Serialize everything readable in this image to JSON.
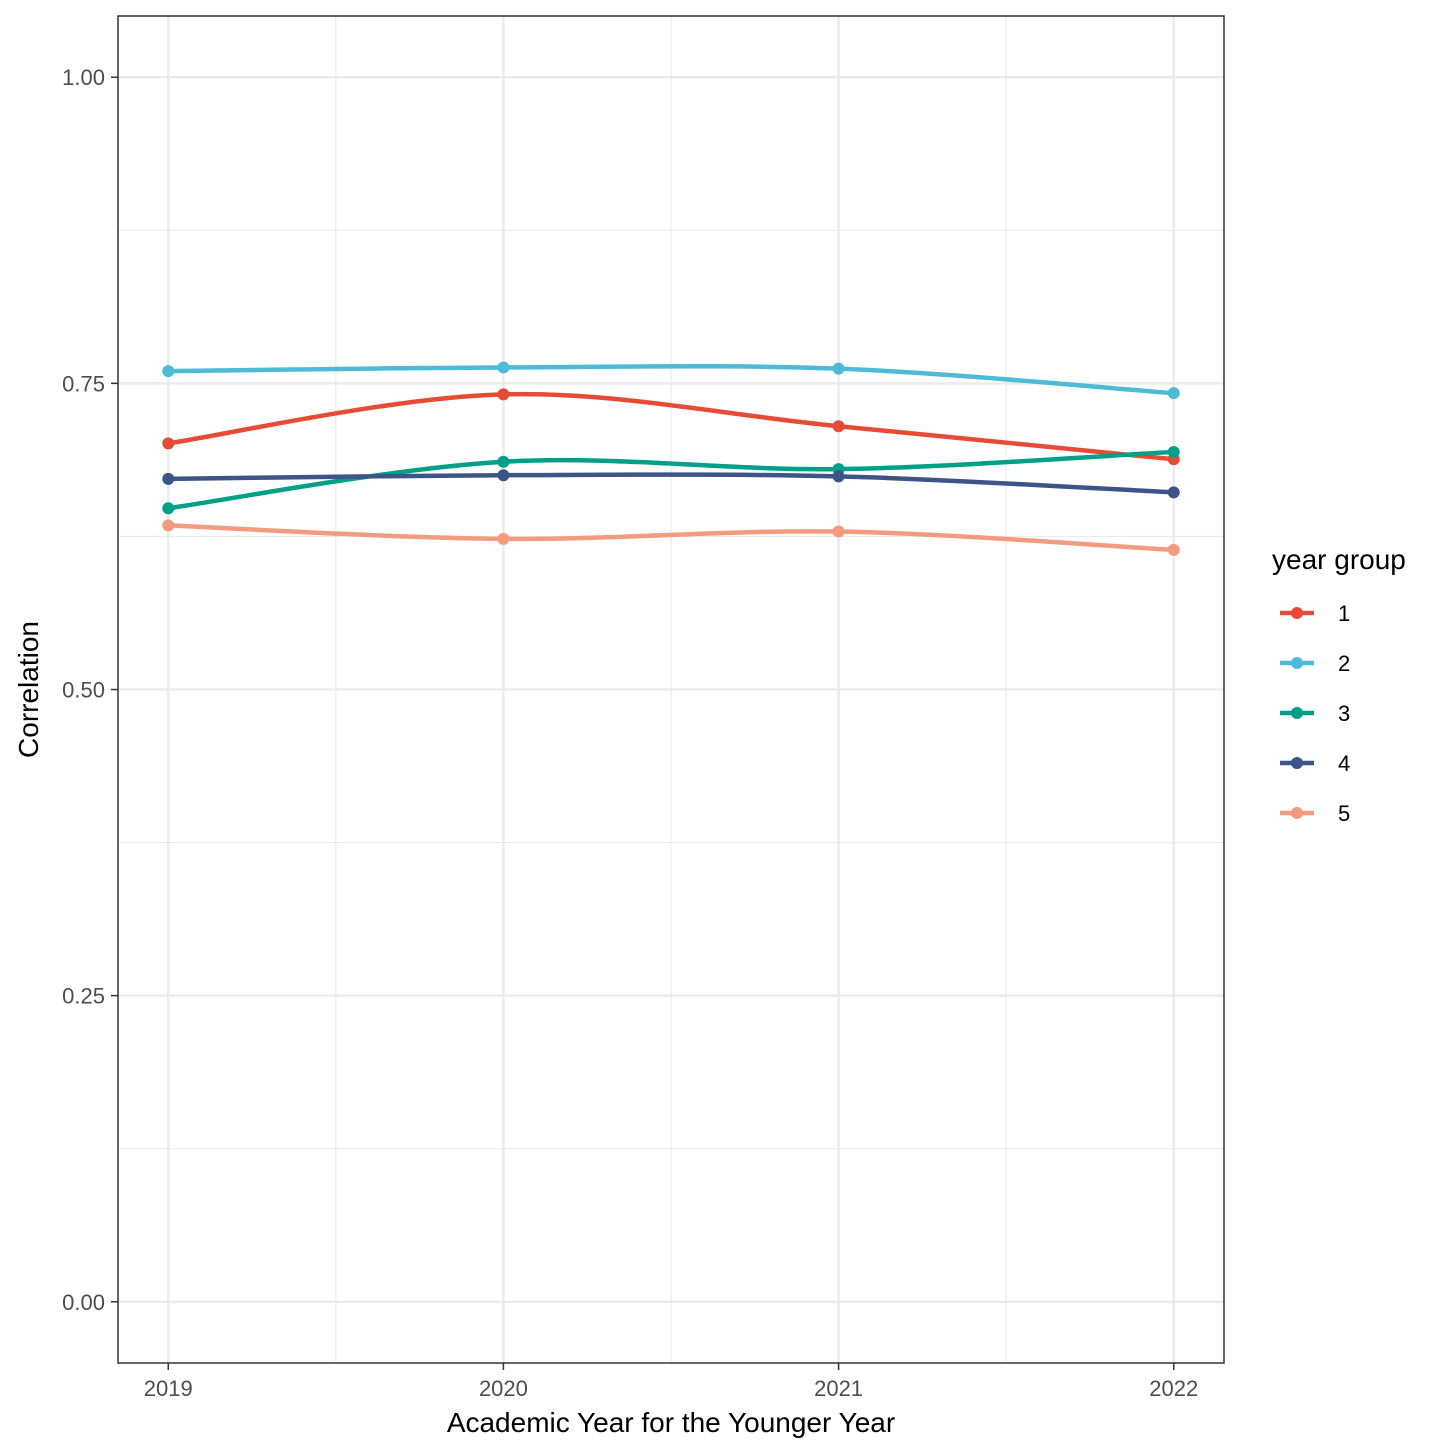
{
  "chart_data": {
    "type": "line",
    "title": "",
    "xlabel": "Academic Year for the Younger Year",
    "ylabel": "Correlation",
    "x": [
      2019,
      2020,
      2021,
      2022
    ],
    "x_tick_labels": [
      "2019",
      "2020",
      "2021",
      "2022"
    ],
    "ylim": [
      -0.05,
      1.05
    ],
    "xlim": [
      2018.85,
      2022.15
    ],
    "y_ticks": [
      0.0,
      0.25,
      0.5,
      0.75,
      1.0
    ],
    "y_tick_labels": [
      "0.00",
      "0.25",
      "0.50",
      "0.75",
      "1.00"
    ],
    "grid": true,
    "smooth": true,
    "legend": {
      "title": "year group",
      "placement": "right"
    },
    "series": [
      {
        "name": "1",
        "color": "#E64B35",
        "values": [
          0.701,
          0.741,
          0.715,
          0.688
        ]
      },
      {
        "name": "2",
        "color": "#4DBBD5",
        "values": [
          0.76,
          0.763,
          0.762,
          0.742
        ]
      },
      {
        "name": "3",
        "color": "#00A087",
        "values": [
          0.648,
          0.686,
          0.68,
          0.694
        ]
      },
      {
        "name": "4",
        "color": "#3C5488",
        "values": [
          0.672,
          0.675,
          0.674,
          0.661
        ]
      },
      {
        "name": "5",
        "color": "#F39B7F",
        "values": [
          0.634,
          0.623,
          0.629,
          0.614
        ]
      }
    ]
  }
}
